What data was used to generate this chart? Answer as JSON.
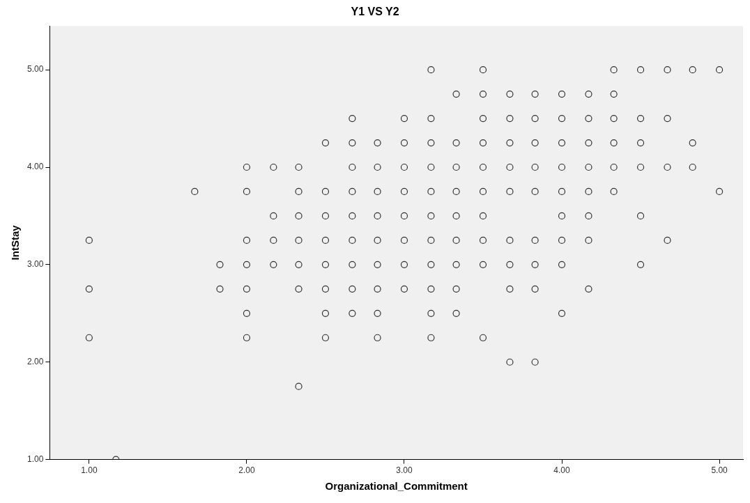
{
  "chart_data": {
    "type": "scatter",
    "title": "Y1 VS Y2",
    "xlabel": "Organizational_Commitment",
    "ylabel": "IntStay",
    "marker": "circle",
    "grid": false,
    "legend": false,
    "xlim": [
      0.75,
      5.15
    ],
    "ylim": [
      1,
      5.45
    ],
    "xticks": [
      {
        "value": 1,
        "label": "1.00"
      },
      {
        "value": 2,
        "label": "2.00"
      },
      {
        "value": 3,
        "label": "3.00"
      },
      {
        "value": 4,
        "label": "4.00"
      },
      {
        "value": 5,
        "label": "5.00"
      }
    ],
    "yticks": [
      {
        "value": 1,
        "label": "1.00"
      },
      {
        "value": 2,
        "label": "2.00"
      },
      {
        "value": 3,
        "label": "3.00"
      },
      {
        "value": 4,
        "label": "4.00"
      },
      {
        "value": 5,
        "label": "5.00"
      }
    ],
    "series": [
      {
        "color": "#333333",
        "x": [
          3.17,
          3.5,
          4.33,
          4.5,
          4.67,
          4.83,
          5,
          3.33,
          3.5,
          3.67,
          3.83,
          4,
          4.17,
          4.33,
          2.67,
          3,
          3.17,
          3.5,
          3.67,
          3.83,
          4,
          4.17,
          4.33,
          4.5,
          4.67,
          2.5,
          2.67,
          2.83,
          3,
          3.17,
          3.33,
          3.5,
          3.67,
          3.83,
          4,
          4.17,
          4.33,
          4.5,
          4.83,
          2,
          2.17,
          2.33,
          2.67,
          2.83,
          3,
          3.17,
          3.33,
          3.5,
          3.67,
          3.83,
          4,
          4.17,
          4.33,
          4.5,
          4.67,
          4.83,
          1.67,
          2,
          2.33,
          2.5,
          2.67,
          2.83,
          3,
          3.17,
          3.33,
          3.5,
          3.67,
          3.83,
          4,
          4.17,
          4.33,
          5,
          2.17,
          2.33,
          2.5,
          2.67,
          2.83,
          3,
          3.17,
          3.33,
          3.5,
          4,
          4.17,
          4.5,
          1,
          2,
          2.17,
          2.33,
          2.5,
          2.67,
          2.83,
          3,
          3.17,
          3.33,
          3.5,
          3.67,
          3.83,
          4,
          4.17,
          4.67,
          1.83,
          2,
          2.17,
          2.33,
          2.5,
          2.67,
          2.83,
          3,
          3.17,
          3.33,
          3.5,
          3.67,
          3.83,
          4,
          4.5,
          1,
          1.83,
          2,
          2.33,
          2.5,
          2.67,
          2.83,
          3,
          3.17,
          3.33,
          3.67,
          3.83,
          4.17,
          2,
          2.5,
          2.67,
          2.83,
          3.17,
          3.33,
          4,
          1,
          2,
          2.5,
          2.83,
          3.17,
          3.5,
          3.67,
          3.83,
          2.33,
          1.17
        ],
        "values": [
          5,
          5,
          5,
          5,
          5,
          5,
          5,
          4.75,
          4.75,
          4.75,
          4.75,
          4.75,
          4.75,
          4.75,
          4.5,
          4.5,
          4.5,
          4.5,
          4.5,
          4.5,
          4.5,
          4.5,
          4.5,
          4.5,
          4.5,
          4.25,
          4.25,
          4.25,
          4.25,
          4.25,
          4.25,
          4.25,
          4.25,
          4.25,
          4.25,
          4.25,
          4.25,
          4.25,
          4.25,
          4,
          4,
          4,
          4,
          4,
          4,
          4,
          4,
          4,
          4,
          4,
          4,
          4,
          4,
          4,
          4,
          4,
          3.75,
          3.75,
          3.75,
          3.75,
          3.75,
          3.75,
          3.75,
          3.75,
          3.75,
          3.75,
          3.75,
          3.75,
          3.75,
          3.75,
          3.75,
          3.75,
          3.5,
          3.5,
          3.5,
          3.5,
          3.5,
          3.5,
          3.5,
          3.5,
          3.5,
          3.5,
          3.5,
          3.5,
          3.25,
          3.25,
          3.25,
          3.25,
          3.25,
          3.25,
          3.25,
          3.25,
          3.25,
          3.25,
          3.25,
          3.25,
          3.25,
          3.25,
          3.25,
          3.25,
          3,
          3,
          3,
          3,
          3,
          3,
          3,
          3,
          3,
          3,
          3,
          3,
          3,
          3,
          3,
          2.75,
          2.75,
          2.75,
          2.75,
          2.75,
          2.75,
          2.75,
          2.75,
          2.75,
          2.75,
          2.75,
          2.75,
          2.75,
          2.5,
          2.5,
          2.5,
          2.5,
          2.5,
          2.5,
          2.5,
          2.25,
          2.25,
          2.25,
          2.25,
          2.25,
          2.25,
          2,
          2,
          1.75,
          1
        ]
      }
    ]
  }
}
